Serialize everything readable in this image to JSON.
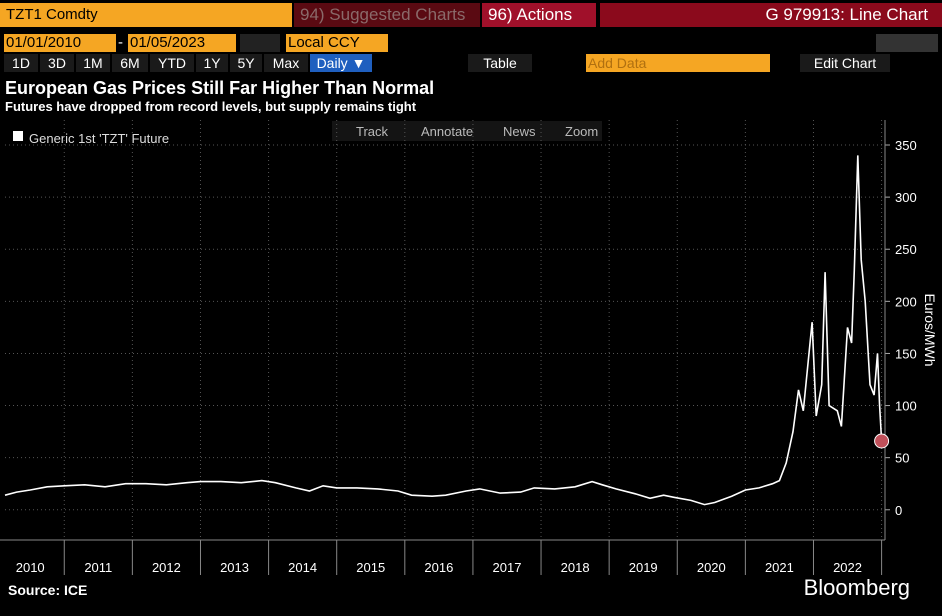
{
  "header": {
    "ticker": "TZT1 Comdty",
    "suggested": "94) Suggested Charts",
    "actions": "96) Actions",
    "function": "G 979913: Line Chart"
  },
  "controls": {
    "start_date": "01/01/2010",
    "separator": "-",
    "end_date": "01/05/2023",
    "currency": "Local CCY",
    "periods": [
      "1D",
      "3D",
      "1M",
      "6M",
      "YTD",
      "1Y",
      "5Y",
      "Max"
    ],
    "frequency": "Daily ▼",
    "table": "Table",
    "add_data": "Add Data",
    "edit_chart": "Edit Chart"
  },
  "chart_tools": [
    "Track",
    "Annotate",
    "News",
    "Zoom"
  ],
  "chart_data": {
    "type": "line",
    "title": "European Gas Prices Still Far Higher Than Normal",
    "subtitle": "Futures have dropped from record levels, but supply remains tight",
    "y_label": "Euros/MWh",
    "source": "Source: ICE",
    "brand": "Bloomberg",
    "series": [
      {
        "name": "Generic 1st 'TZT' Future",
        "color": "#ffffff",
        "x": [
          2010.13,
          2010.3,
          2010.5,
          2010.75,
          2011.0,
          2011.3,
          2011.6,
          2011.9,
          2012.2,
          2012.5,
          2012.8,
          2013.0,
          2013.3,
          2013.6,
          2013.9,
          2014.1,
          2014.4,
          2014.6,
          2014.8,
          2015.0,
          2015.3,
          2015.6,
          2015.9,
          2016.1,
          2016.4,
          2016.6,
          2016.9,
          2017.1,
          2017.4,
          2017.7,
          2017.9,
          2018.2,
          2018.5,
          2018.75,
          2018.9,
          2019.1,
          2019.4,
          2019.6,
          2019.8,
          2019.95,
          2020.2,
          2020.4,
          2020.55,
          2020.8,
          2021.0,
          2021.2,
          2021.4,
          2021.5,
          2021.6,
          2021.7,
          2021.78,
          2021.85,
          2021.98,
          2022.04,
          2022.12,
          2022.17,
          2022.23,
          2022.35,
          2022.41,
          2022.5,
          2022.56,
          2022.6,
          2022.65,
          2022.7,
          2022.76,
          2022.83,
          2022.89,
          2022.94,
          2022.97,
          2023.0
        ],
        "values": [
          14,
          17,
          19,
          22,
          23,
          24,
          22,
          25,
          25,
          24,
          26,
          27,
          27,
          26,
          28,
          26,
          21,
          18,
          23,
          21,
          21,
          20,
          18,
          14,
          13,
          14,
          18,
          20,
          16,
          17,
          21,
          20,
          22,
          27,
          24,
          20,
          15,
          11,
          14,
          12,
          9,
          5,
          7,
          13,
          19,
          21,
          25,
          28,
          45,
          75,
          115,
          95,
          180,
          90,
          120,
          228,
          100,
          95,
          80,
          175,
          160,
          230,
          340,
          240,
          200,
          120,
          110,
          150,
          100,
          66
        ]
      }
    ],
    "last_point_color": "#c0505a",
    "xlim": [
      2010.13,
      2023.05
    ],
    "ylim": [
      -29,
      374
    ],
    "yticks": [
      0,
      50,
      100,
      150,
      200,
      250,
      300,
      350
    ],
    "xticks": [
      2011,
      2012,
      2013,
      2014,
      2015,
      2016,
      2017,
      2018,
      2019,
      2020,
      2021,
      2022,
      2023
    ],
    "x_labels": [
      {
        "value": 2010.5,
        "label": "2010"
      },
      {
        "value": 2011.5,
        "label": "2011"
      },
      {
        "value": 2012.5,
        "label": "2012"
      },
      {
        "value": 2013.5,
        "label": "2013"
      },
      {
        "value": 2014.5,
        "label": "2014"
      },
      {
        "value": 2015.5,
        "label": "2015"
      },
      {
        "value": 2016.5,
        "label": "2016"
      },
      {
        "value": 2017.5,
        "label": "2017"
      },
      {
        "value": 2018.5,
        "label": "2018"
      },
      {
        "value": 2019.5,
        "label": "2019"
      },
      {
        "value": 2020.5,
        "label": "2020"
      },
      {
        "value": 2021.5,
        "label": "2021"
      },
      {
        "value": 2022.5,
        "label": "2022"
      }
    ],
    "grid": true
  }
}
